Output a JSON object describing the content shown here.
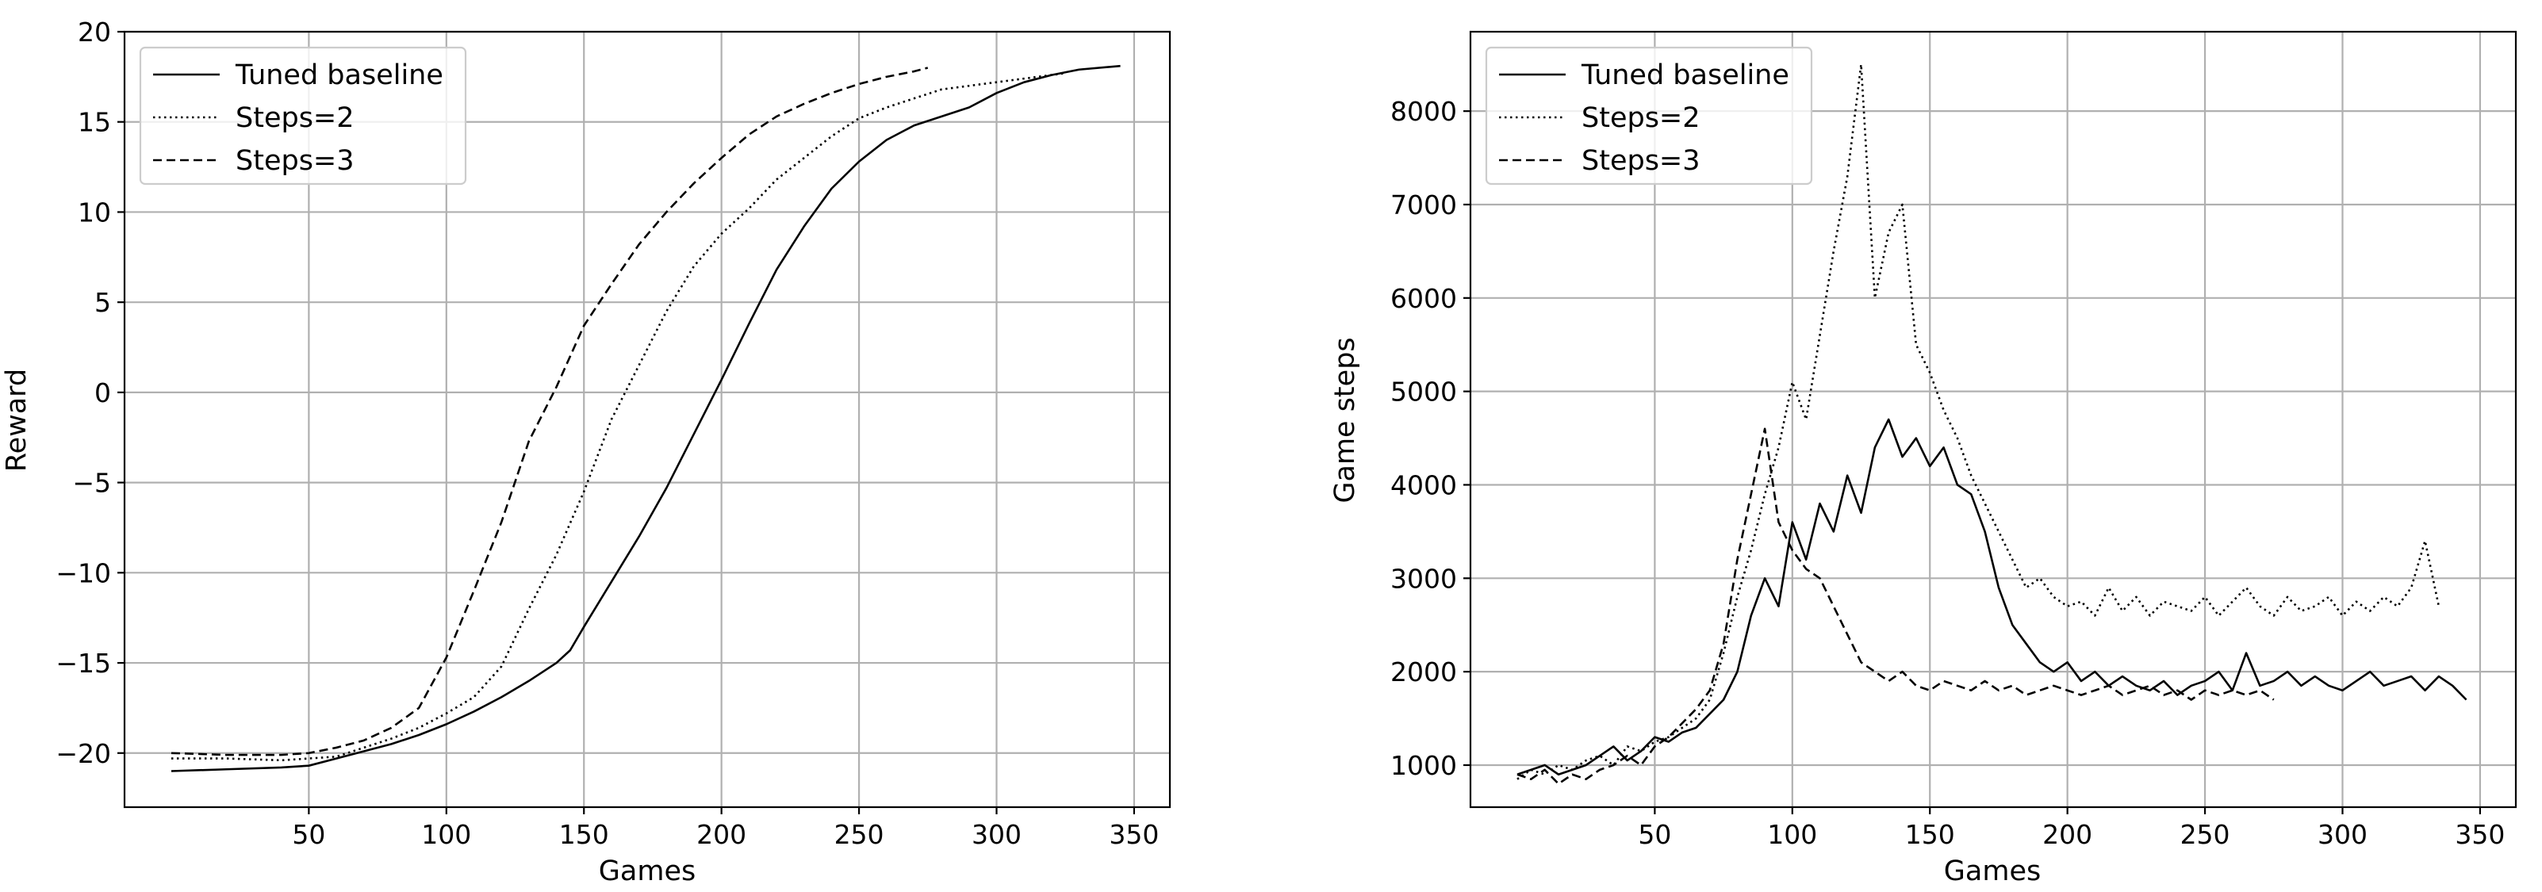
{
  "chart_data": [
    {
      "type": "line",
      "xlabel": "Games",
      "ylabel": "Reward",
      "xlim": [
        -17,
        363
      ],
      "ylim": [
        -23,
        20
      ],
      "xticks": [
        50,
        100,
        150,
        200,
        250,
        300,
        350
      ],
      "yticks": [
        -20,
        -15,
        -10,
        -5,
        0,
        5,
        10,
        15,
        20
      ],
      "xtick_labels": [
        "50",
        "100",
        "150",
        "200",
        "250",
        "300",
        "350"
      ],
      "ytick_labels": [
        "−20",
        "−15",
        "−10",
        "−5",
        "0",
        "5",
        "10",
        "15",
        "20"
      ],
      "grid": true,
      "legend_position": "top-left",
      "series": [
        {
          "name": "Tuned baseline",
          "style": "solid",
          "color": "#000000",
          "x": [
            0,
            20,
            40,
            50,
            60,
            70,
            80,
            90,
            100,
            110,
            120,
            130,
            140,
            145,
            150,
            160,
            170,
            180,
            190,
            200,
            210,
            220,
            230,
            240,
            250,
            260,
            270,
            280,
            290,
            300,
            310,
            320,
            330,
            345
          ],
          "y": [
            -21,
            -20.9,
            -20.8,
            -20.7,
            -20.3,
            -19.9,
            -19.5,
            -19.0,
            -18.4,
            -17.7,
            -16.9,
            -16.0,
            -15.0,
            -14.3,
            -13.0,
            -10.5,
            -8.0,
            -5.3,
            -2.3,
            0.7,
            3.8,
            6.8,
            9.2,
            11.3,
            12.8,
            14.0,
            14.8,
            15.3,
            15.8,
            16.6,
            17.2,
            17.6,
            17.9,
            18.1
          ]
        },
        {
          "name": "Steps=2",
          "style": "dotted",
          "color": "#000000",
          "x": [
            0,
            20,
            40,
            60,
            70,
            80,
            90,
            100,
            110,
            120,
            130,
            140,
            150,
            160,
            170,
            180,
            190,
            200,
            210,
            220,
            230,
            240,
            250,
            260,
            270,
            280,
            290,
            300,
            310,
            320,
            325
          ],
          "y": [
            -20.3,
            -20.3,
            -20.4,
            -20.2,
            -19.7,
            -19.2,
            -18.6,
            -17.8,
            -16.9,
            -15.2,
            -12.0,
            -9.0,
            -5.5,
            -1.5,
            1.5,
            4.5,
            7.0,
            8.8,
            10.2,
            11.8,
            13.0,
            14.2,
            15.2,
            15.8,
            16.3,
            16.8,
            17.0,
            17.2,
            17.4,
            17.6,
            17.7
          ]
        },
        {
          "name": "Steps=3",
          "style": "dashed",
          "color": "#000000",
          "x": [
            0,
            20,
            40,
            50,
            60,
            70,
            80,
            90,
            100,
            110,
            120,
            130,
            140,
            150,
            160,
            170,
            180,
            190,
            200,
            210,
            220,
            230,
            240,
            250,
            260,
            270,
            275
          ],
          "y": [
            -20,
            -20.1,
            -20.1,
            -20.0,
            -19.7,
            -19.3,
            -18.6,
            -17.5,
            -14.7,
            -11.0,
            -7.2,
            -2.7,
            0.3,
            3.7,
            6.0,
            8.2,
            10.0,
            11.6,
            13.0,
            14.3,
            15.3,
            16.0,
            16.6,
            17.1,
            17.5,
            17.8,
            18.0
          ]
        }
      ]
    },
    {
      "type": "line",
      "xlabel": "Games",
      "ylabel": "Game steps",
      "xlim": [
        -17,
        363
      ],
      "ylim": [
        550,
        8850
      ],
      "xticks": [
        50,
        100,
        150,
        200,
        250,
        300,
        350
      ],
      "yticks": [
        1000,
        2000,
        3000,
        4000,
        5000,
        6000,
        7000,
        8000
      ],
      "xtick_labels": [
        "50",
        "100",
        "150",
        "200",
        "250",
        "300",
        "350"
      ],
      "ytick_labels": [
        "1000",
        "2000",
        "3000",
        "4000",
        "5000",
        "6000",
        "7000",
        "8000"
      ],
      "grid": true,
      "legend_position": "top-left",
      "series": [
        {
          "name": "Tuned baseline",
          "style": "solid",
          "color": "#000000",
          "x": [
            0,
            5,
            10,
            15,
            20,
            25,
            30,
            35,
            40,
            45,
            50,
            55,
            60,
            65,
            70,
            75,
            80,
            85,
            90,
            95,
            100,
            105,
            110,
            115,
            120,
            125,
            130,
            135,
            140,
            145,
            150,
            155,
            160,
            165,
            170,
            175,
            180,
            185,
            190,
            195,
            200,
            205,
            210,
            215,
            220,
            225,
            230,
            235,
            240,
            245,
            250,
            255,
            260,
            265,
            270,
            275,
            280,
            285,
            290,
            295,
            300,
            305,
            310,
            315,
            320,
            325,
            330,
            335,
            340,
            345
          ],
          "y": [
            900,
            950,
            1000,
            900,
            950,
            1000,
            1100,
            1200,
            1050,
            1150,
            1300,
            1250,
            1350,
            1400,
            1550,
            1700,
            2000,
            2600,
            3000,
            2700,
            3600,
            3200,
            3800,
            3500,
            4100,
            3700,
            4400,
            4700,
            4300,
            4500,
            4200,
            4400,
            4000,
            3900,
            3500,
            2900,
            2500,
            2300,
            2100,
            2000,
            2100,
            1900,
            2000,
            1850,
            1950,
            1850,
            1800,
            1900,
            1750,
            1850,
            1900,
            2000,
            1800,
            2200,
            1850,
            1900,
            2000,
            1850,
            1950,
            1850,
            1800,
            1900,
            2000,
            1850,
            1900,
            1950,
            1800,
            1950,
            1850,
            1700
          ]
        },
        {
          "name": "Steps=2",
          "style": "dotted",
          "color": "#000000",
          "x": [
            0,
            5,
            10,
            15,
            20,
            25,
            30,
            35,
            40,
            45,
            50,
            55,
            60,
            65,
            70,
            75,
            80,
            85,
            90,
            95,
            100,
            105,
            110,
            115,
            120,
            125,
            130,
            135,
            140,
            145,
            150,
            155,
            160,
            165,
            170,
            175,
            180,
            185,
            190,
            195,
            200,
            205,
            210,
            215,
            220,
            225,
            230,
            235,
            240,
            245,
            250,
            255,
            260,
            265,
            270,
            275,
            280,
            285,
            290,
            295,
            300,
            305,
            310,
            315,
            320,
            325,
            330,
            335
          ],
          "y": [
            850,
            950,
            900,
            1000,
            950,
            1050,
            1100,
            1000,
            1200,
            1150,
            1250,
            1300,
            1400,
            1500,
            1700,
            2200,
            2800,
            3300,
            3900,
            4400,
            5100,
            4700,
            5600,
            6500,
            7300,
            8500,
            6000,
            6700,
            7000,
            5500,
            5200,
            4800,
            4500,
            4100,
            3800,
            3500,
            3200,
            2900,
            3000,
            2800,
            2700,
            2750,
            2600,
            2900,
            2650,
            2800,
            2600,
            2750,
            2700,
            2650,
            2800,
            2600,
            2750,
            2900,
            2700,
            2600,
            2800,
            2650,
            2700,
            2800,
            2600,
            2750,
            2650,
            2800,
            2700,
            2900,
            3400,
            2700
          ]
        },
        {
          "name": "Steps=3",
          "style": "dashed",
          "color": "#000000",
          "x": [
            0,
            5,
            10,
            15,
            20,
            25,
            30,
            35,
            40,
            45,
            50,
            55,
            60,
            65,
            70,
            75,
            80,
            85,
            90,
            95,
            100,
            105,
            110,
            115,
            120,
            125,
            130,
            135,
            140,
            145,
            150,
            155,
            160,
            165,
            170,
            175,
            180,
            185,
            190,
            195,
            200,
            205,
            210,
            215,
            220,
            225,
            230,
            235,
            240,
            245,
            250,
            255,
            260,
            265,
            270,
            275
          ],
          "y": [
            900,
            850,
            950,
            800,
            900,
            850,
            950,
            1000,
            1100,
            1000,
            1200,
            1300,
            1450,
            1600,
            1800,
            2300,
            3200,
            3900,
            4600,
            3600,
            3300,
            3100,
            3000,
            2700,
            2400,
            2100,
            2000,
            1900,
            2000,
            1850,
            1800,
            1900,
            1850,
            1800,
            1900,
            1800,
            1850,
            1750,
            1800,
            1850,
            1800,
            1750,
            1800,
            1850,
            1750,
            1800,
            1850,
            1750,
            1800,
            1700,
            1800,
            1750,
            1800,
            1750,
            1800,
            1700
          ]
        }
      ]
    }
  ]
}
